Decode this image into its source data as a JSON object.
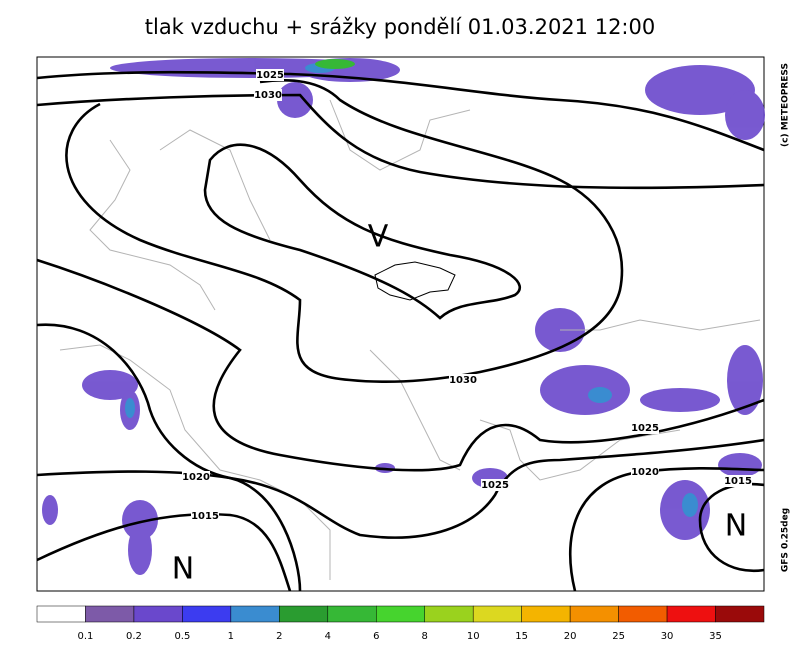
{
  "title": "tlak vzduchu + srážky pondělí 01.03.2021 12:00",
  "credit": "(c) METEOPRESS",
  "model": "GFS 0.25deg",
  "pressure_centers": [
    "V",
    "N",
    "N"
  ],
  "isobar_labels": [
    "1025",
    "1030",
    "1030",
    "1025",
    "1025",
    "1020",
    "1020",
    "1015",
    "1015"
  ],
  "legend": {
    "labels": [
      "0.1",
      "0.2",
      "0.5",
      "1",
      "2",
      "4",
      "6",
      "8",
      "10",
      "15",
      "20",
      "25",
      "30",
      "35"
    ],
    "colors": [
      "#ffffff",
      "#7d5aa8",
      "#6a48cc",
      "#3c3cf0",
      "#3a8cd0",
      "#2a9c30",
      "#36b836",
      "#46d42e",
      "#9ad21e",
      "#dcd820",
      "#f4b400",
      "#f49000",
      "#f25c00",
      "#ee1010",
      "#9a0a0a"
    ]
  }
}
